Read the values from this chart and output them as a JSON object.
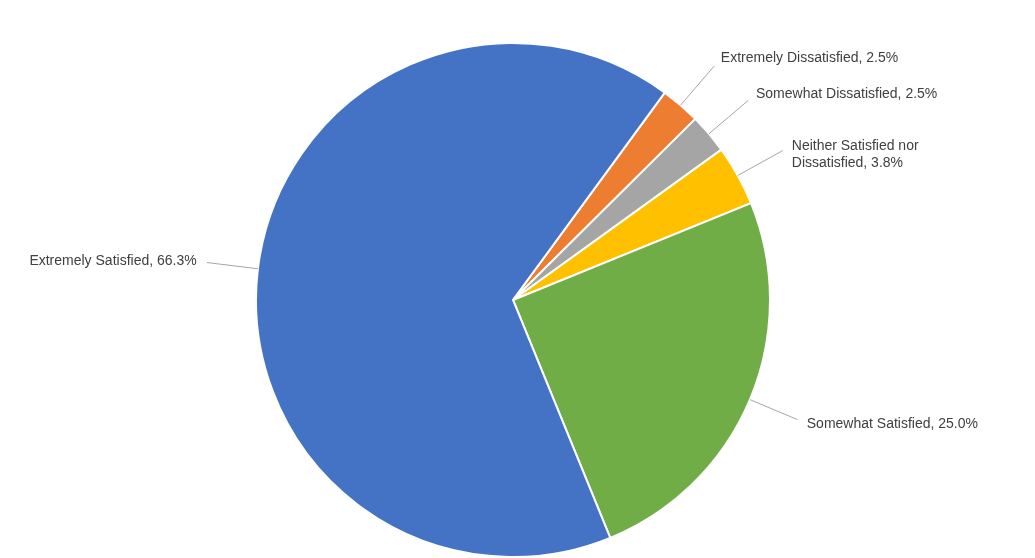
{
  "chart_data": {
    "type": "pie",
    "categories": [
      "Extremely Dissatisfied",
      "Somewhat Dissatisfied",
      "Neither Satisfied nor Dissatisfied",
      "Somewhat Satisfied",
      "Extremely Satisfied"
    ],
    "values": [
      2.5,
      2.5,
      3.8,
      25.0,
      66.3
    ],
    "value_labels": [
      "2.5%",
      "2.5%",
      "3.8%",
      "25.0%",
      "66.3%"
    ],
    "colors": [
      "#ed7d31",
      "#a5a5a5",
      "#ffc000",
      "#70ad47",
      "#4472c4"
    ]
  }
}
